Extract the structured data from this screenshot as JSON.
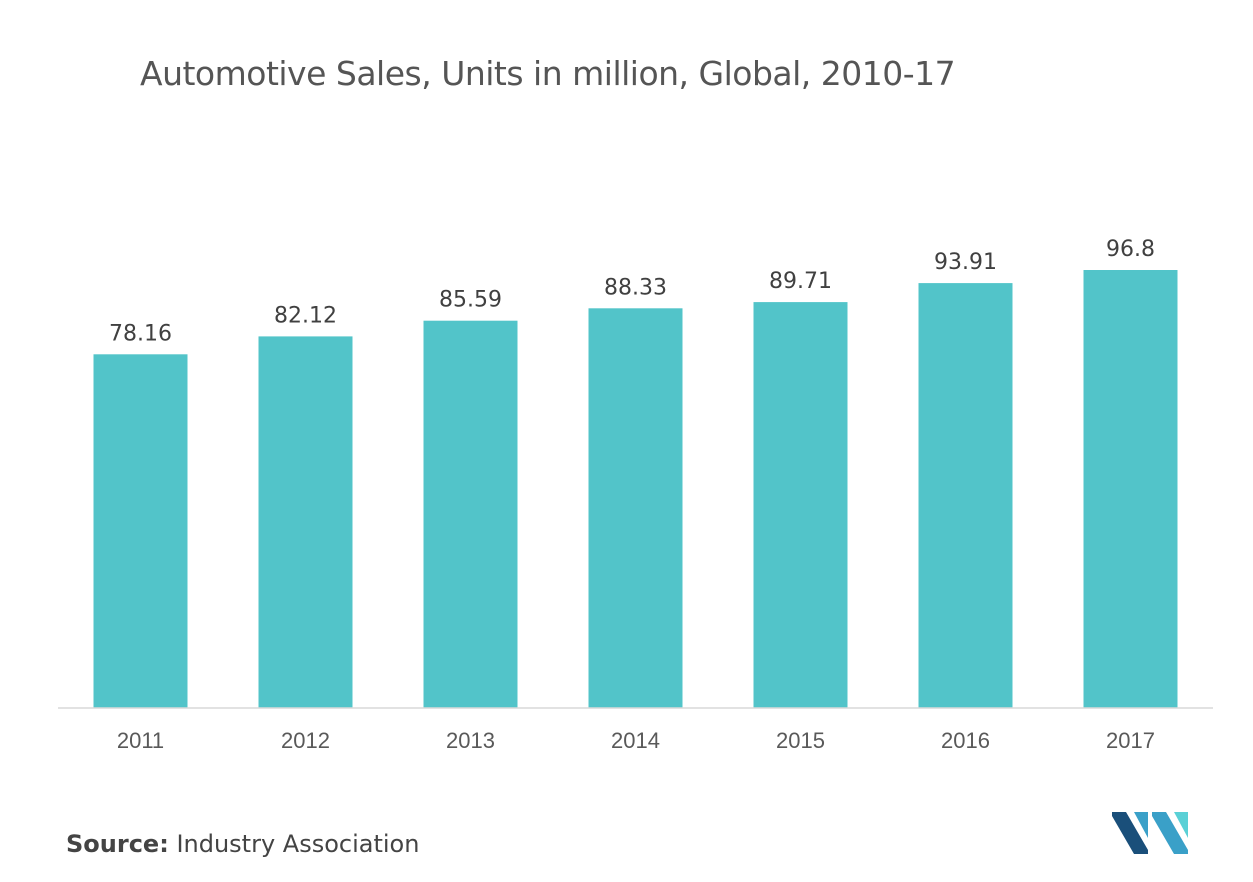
{
  "title": "Automotive Sales, Units in million, Global, 2010-17",
  "source": {
    "label": "Source:",
    "text": "Industry Association"
  },
  "logo": {
    "icon": "mordor-intelligence-logo-icon",
    "colors": [
      "#1a4f7a",
      "#3aa0c8",
      "#5ad0d6"
    ]
  },
  "colors": {
    "bar": "#52c4c9",
    "axis": "#d9d9d9",
    "label": "#404040",
    "tick": "#595959"
  },
  "chart_data": {
    "type": "bar",
    "categories": [
      "2011",
      "2012",
      "2013",
      "2014",
      "2015",
      "2016",
      "2017"
    ],
    "values": [
      78.16,
      82.12,
      85.59,
      88.33,
      89.71,
      93.91,
      96.8
    ],
    "value_labels": [
      "78.16",
      "82.12",
      "85.59",
      "88.33",
      "89.71",
      "93.91",
      "96.8"
    ],
    "title": "Automotive Sales, Units in million, Global, 2010-17",
    "xlabel": "",
    "ylabel": "",
    "ylim": [
      0,
      96.8
    ],
    "grid": false,
    "legend": "none"
  }
}
